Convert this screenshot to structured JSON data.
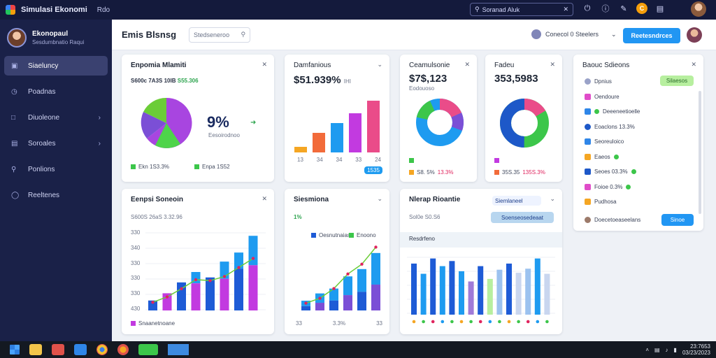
{
  "titlebar": {
    "title": "Simulasi Ekonomi",
    "menu": "Rdo",
    "search": "Soranad Aluk"
  },
  "sidebar": {
    "profile_name": "Ekonopaul",
    "profile_sub": "Sesdumbnatio Raqui",
    "items": [
      {
        "label": "Siaeluncy",
        "icon": "chart-icon",
        "active": true
      },
      {
        "label": "Poadnas",
        "icon": "clock-icon"
      },
      {
        "label": "Diuoleone",
        "icon": "folder-icon"
      },
      {
        "label": "Soroales",
        "icon": "stack-icon"
      },
      {
        "label": "Ponlions",
        "icon": "wrench-icon"
      },
      {
        "label": "Reeltenes",
        "icon": "globe-icon"
      }
    ]
  },
  "header": {
    "title": "Emis Blsnsg",
    "search": "Stedseneroo",
    "connected": "Conecol 0 Steelers",
    "button": "Reetesndrces"
  },
  "card_market": {
    "title": "Enpomia Mlamiti",
    "sub": "S600c 7A3S 10IB",
    "sub_value": "S55.306",
    "kpi": "9%",
    "kpi_sub": "Eesoirodnoo",
    "legend1": "Ekn 1S3.3%",
    "legend2": "Enpa 1S52"
  },
  "card_bars": {
    "title": "Damfanious",
    "value": "$51.939%",
    "value_suffix": "IHI",
    "x_labels": [
      "13",
      "34",
      "34",
      "33",
      "24"
    ],
    "badge": "1535"
  },
  "card_donut1": {
    "title": "Ceamulsonie",
    "value": "$7$,123",
    "sub": "Eodouoso",
    "leg1": "S8. 5%",
    "leg2": "13.3%"
  },
  "card_donut2": {
    "title": "Fadeu",
    "value": "353,5983",
    "leg1": "35S.35",
    "leg2": "135S.3%"
  },
  "card_side": {
    "title": "Baouc Sdieons",
    "button": "Silaesos",
    "rows": [
      {
        "label": "Dpnius",
        "color": "#9aa2c8"
      },
      {
        "label": "Oendoure",
        "color": "#e04cc9"
      },
      {
        "label": "Deeeneetioelle",
        "color": "#2f86e8"
      },
      {
        "label": "Eoaclons 13.3%",
        "color": "#1d58c8"
      },
      {
        "label": "Seoreuloico",
        "color": "#2f86e8"
      },
      {
        "label": "Eaeos",
        "color": "#f5a623"
      },
      {
        "label": "Seoes 03.3%",
        "color": "#1d58c8"
      },
      {
        "label": "Foioe 0.3%",
        "color": "#e04cc9"
      },
      {
        "label": "Pudhosa",
        "color": "#f5a623"
      }
    ],
    "footer": "Doecetoeaseelans",
    "footer_button": "Sinoe"
  },
  "card_revenue": {
    "title": "Eenpsi Soneoin",
    "sub": "S600S 26aS 3.32.96",
    "y_labels": [
      "330",
      "340",
      "330",
      "330",
      "330",
      "430",
      "330"
    ],
    "legend": "Snaanetnoane",
    "chart_data": {
      "type": "bar",
      "series": [
        {
          "values": [
            22,
            38,
            62,
            85,
            73,
            108,
            128,
            165
          ]
        },
        {
          "values": [
            22,
            38,
            62,
            60,
            73,
            70,
            92,
            100
          ]
        }
      ],
      "line": [
        18,
        30,
        48,
        68,
        66,
        75,
        95,
        115
      ]
    }
  },
  "card_growth": {
    "title": "Siesmiona",
    "sub": "1%",
    "legend": [
      "Oesnutnaiase",
      "Enoono"
    ],
    "x_labels": [
      "33",
      "3.3%",
      "33"
    ],
    "chart_data": {
      "type": "bar",
      "values": [
        20,
        35,
        45,
        70,
        85,
        118
      ],
      "line": [
        15,
        25,
        45,
        75,
        95,
        130
      ]
    }
  },
  "card_stack": {
    "title": "Nlerap Rioantie",
    "sub": "Sol0e S0.S6",
    "pill1": "Siemlaneel",
    "pill2": "Soenseosedeaat",
    "band": "Resdrfeno",
    "chart_data": {
      "type": "bar",
      "values": [
        100,
        80,
        110,
        95,
        105,
        85,
        65,
        95,
        70,
        88,
        100,
        82,
        90,
        110,
        80
      ]
    }
  },
  "taskbar": {
    "time": "23:7653",
    "date": "03/23/2023"
  }
}
